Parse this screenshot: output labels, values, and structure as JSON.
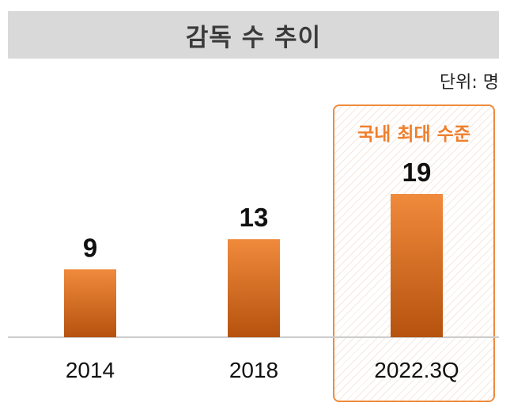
{
  "chart_data": {
    "type": "bar",
    "title": "감독 수 추이",
    "unit_label": "단위: 명",
    "categories": [
      "2014",
      "2018",
      "2022.3Q"
    ],
    "values": [
      9,
      13,
      19
    ],
    "xlabel": "",
    "ylabel": "",
    "ylim": [
      0,
      19
    ],
    "grid": false,
    "highlight": {
      "category": "2022.3Q",
      "label": "국내 최대 수준"
    },
    "colors": {
      "bar_top": "#f08a3c",
      "bar_bottom": "#b5520e",
      "highlight_border": "#f08a3c",
      "highlight_text": "#ef7f2d",
      "title_bg": "#d9d9d9",
      "baseline": "#cccccc"
    }
  }
}
